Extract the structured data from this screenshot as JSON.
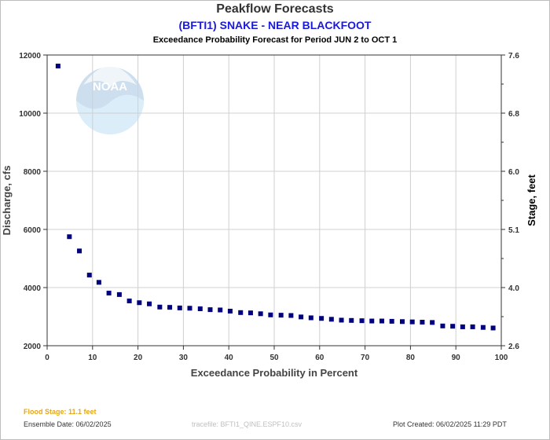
{
  "header": {
    "title": "Peakflow Forecasts",
    "station": "(BFTI1) SNAKE - NEAR BLACKFOOT",
    "subtitle": "Exceedance Probability Forecast for Period JUN 2 to OCT 1"
  },
  "logo_text": "NOAA",
  "footer": {
    "flood_stage": "Flood Stage: 11.1 feet",
    "ensemble_date": "Ensemble Date: 06/02/2025",
    "tracefile": "tracefile: BFTI1_QINE.ESPF10.csv",
    "plot_created": "Plot Created: 06/02/2025 11:29 PDT"
  },
  "colors": {
    "points": "#00007f",
    "station": "#1a1adb",
    "flood": "#e6a817",
    "grid": "#d0d0d0"
  },
  "chart_data": {
    "type": "scatter",
    "xlabel": "Exceedance Probability in Percent",
    "ylabel": "Discharge, cfs",
    "y2label": "Stage, feet",
    "xlim": [
      0,
      100
    ],
    "ylim": [
      2000,
      12000
    ],
    "x_ticks": [
      "0",
      "10",
      "20",
      "30",
      "40",
      "50",
      "60",
      "70",
      "80",
      "90",
      "100"
    ],
    "y_ticks": [
      "2000",
      "4000",
      "6000",
      "8000",
      "10000",
      "12000"
    ],
    "y2_ticks": [
      "2.6",
      "4.0",
      "5.1",
      "6.0",
      "6.8",
      "7.6"
    ],
    "grid": true,
    "x": [
      2.4,
      4.9,
      7.1,
      9.3,
      11.4,
      13.6,
      15.9,
      18.1,
      20.3,
      22.5,
      24.8,
      27.0,
      29.2,
      31.4,
      33.7,
      35.9,
      38.1,
      40.3,
      42.6,
      44.8,
      47.0,
      49.2,
      51.5,
      53.7,
      55.9,
      58.1,
      60.4,
      62.6,
      64.8,
      67.0,
      69.3,
      71.5,
      73.7,
      75.9,
      78.2,
      80.4,
      82.6,
      84.8,
      87.1,
      89.3,
      91.5,
      93.7,
      96.0,
      98.2
    ],
    "y": [
      11620,
      5750,
      5260,
      4430,
      4180,
      3810,
      3760,
      3540,
      3480,
      3440,
      3330,
      3320,
      3300,
      3290,
      3270,
      3240,
      3230,
      3190,
      3140,
      3130,
      3100,
      3060,
      3050,
      3040,
      2990,
      2960,
      2940,
      2910,
      2880,
      2870,
      2860,
      2850,
      2850,
      2840,
      2830,
      2820,
      2810,
      2800,
      2680,
      2670,
      2650,
      2650,
      2630,
      2610
    ]
  }
}
